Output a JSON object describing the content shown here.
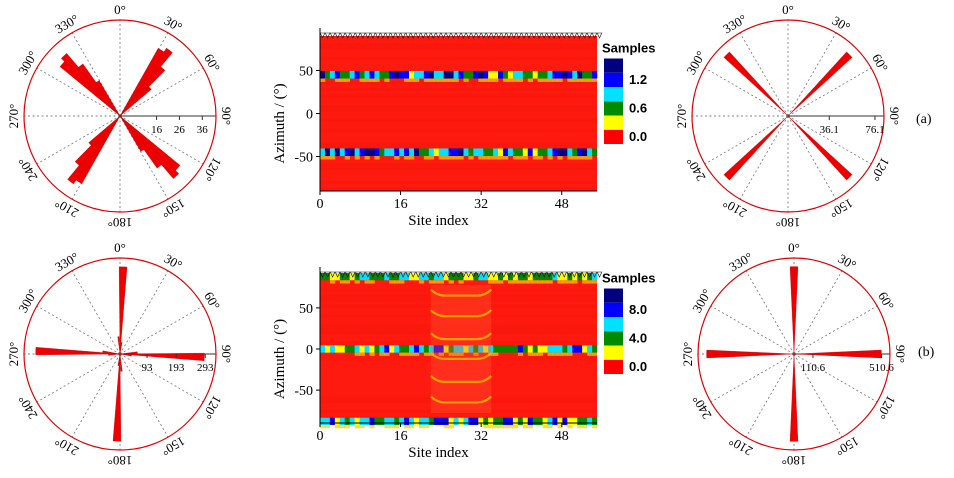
{
  "colors": {
    "rose_fill": "#ee0000",
    "circle": "#e00000",
    "spoke": "#808080",
    "map_red": "#ff1a10",
    "colorbar": [
      "#ff0000",
      "#ffff00",
      "#008a00",
      "#00e0ff",
      "#0000ff",
      "#000080"
    ]
  },
  "chart_data": [
    {
      "id": "rose-a-left",
      "type": "rose",
      "row": "a",
      "angle_labels": [
        "0°",
        "30°",
        "60°",
        "90°",
        "120°",
        "150°",
        "180°",
        "210°",
        "240°",
        "270°",
        "300°",
        "330°"
      ],
      "radial_ticks": [
        16,
        26,
        36
      ],
      "radial_tick_labels": [
        "16",
        "26",
        "36"
      ],
      "rmax": 42,
      "bins": [
        {
          "angle": 32,
          "value": 34
        },
        {
          "angle": 37,
          "value": 36
        },
        {
          "angle": 42,
          "value": 28
        },
        {
          "angle": 47,
          "value": 18
        },
        {
          "angle": 212,
          "value": 34
        },
        {
          "angle": 217,
          "value": 36
        },
        {
          "angle": 222,
          "value": 28
        },
        {
          "angle": 227,
          "value": 18
        },
        {
          "angle": 132,
          "value": 34
        },
        {
          "angle": 137,
          "value": 36
        },
        {
          "angle": 142,
          "value": 28
        },
        {
          "angle": 147,
          "value": 18
        },
        {
          "angle": 312,
          "value": 34
        },
        {
          "angle": 317,
          "value": 36
        },
        {
          "angle": 322,
          "value": 28
        },
        {
          "angle": 327,
          "value": 18
        }
      ]
    },
    {
      "id": "heatmap-a",
      "type": "heatmap",
      "row": "a",
      "xlabel": "Site index",
      "ylabel": "Azimuth / (°)",
      "xticks": [
        0,
        16,
        32,
        48
      ],
      "xlim": [
        0,
        55
      ],
      "yticks": [
        -50,
        0,
        50
      ],
      "ylim": [
        -90,
        90
      ],
      "colorbar_title": "Samples",
      "colorbar_ticks": [
        "1.2",
        "0.6",
        "0.0"
      ],
      "colorbar_max": 1.8,
      "bands": [
        {
          "azimuth": 45,
          "peak": 1.5
        },
        {
          "azimuth": -45,
          "peak": 1.5
        }
      ]
    },
    {
      "id": "rose-a-right",
      "type": "rose",
      "row": "a",
      "angle_labels": [
        "0°",
        "30°",
        "60°",
        "90°",
        "120°",
        "150°",
        "180°",
        "210°",
        "240°",
        "270°",
        "300°",
        "330°"
      ],
      "radial_ticks": [
        36.1,
        76.1
      ],
      "radial_tick_labels": [
        "36.1",
        "76.1"
      ],
      "rmax": 84,
      "bins": [
        {
          "angle": 45,
          "value": 76
        },
        {
          "angle": 135,
          "value": 76
        },
        {
          "angle": 225,
          "value": 76
        },
        {
          "angle": 315,
          "value": 76
        }
      ]
    },
    {
      "id": "rose-b-left",
      "type": "rose",
      "row": "b",
      "angle_labels": [
        "0°",
        "30°",
        "60°",
        "90°",
        "120°",
        "150°",
        "180°",
        "210°",
        "240°",
        "270°",
        "300°",
        "330°"
      ],
      "radial_ticks": [
        93,
        193,
        293
      ],
      "radial_tick_labels": [
        "93",
        "193",
        "293"
      ],
      "rmax": 330,
      "bins": [
        {
          "angle": 2,
          "value": 300
        },
        {
          "angle": 8,
          "value": 40
        },
        {
          "angle": 355,
          "value": 60
        },
        {
          "angle": 182,
          "value": 300
        },
        {
          "angle": 188,
          "value": 40
        },
        {
          "angle": 175,
          "value": 60
        },
        {
          "angle": 92,
          "value": 290
        },
        {
          "angle": 98,
          "value": 40
        },
        {
          "angle": 85,
          "value": 60
        },
        {
          "angle": 272,
          "value": 290
        },
        {
          "angle": 278,
          "value": 60
        },
        {
          "angle": 265,
          "value": 40
        }
      ]
    },
    {
      "id": "heatmap-b",
      "type": "heatmap",
      "row": "b",
      "xlabel": "Site index",
      "ylabel": "Azimuth / (°)",
      "xticks": [
        0,
        16,
        32,
        48
      ],
      "xlim": [
        0,
        55
      ],
      "yticks": [
        -50,
        0,
        50
      ],
      "ylim": [
        -90,
        90
      ],
      "colorbar_title": "Samples",
      "colorbar_ticks": [
        "8.0",
        "4.0",
        "0.0"
      ],
      "colorbar_max": 12,
      "bands": [
        {
          "azimuth": 88,
          "peak": 7
        },
        {
          "azimuth": 0,
          "peak": 8
        },
        {
          "azimuth": -88,
          "peak": 8
        }
      ],
      "loop": {
        "from": 22,
        "to": 34,
        "azimuths": [
          65,
          40,
          12,
          -12,
          -40,
          -65
        ]
      }
    },
    {
      "id": "rose-b-right",
      "type": "rose",
      "row": "b",
      "angle_labels": [
        "0°",
        "30°",
        "60°",
        "90°",
        "120°",
        "150°",
        "180°",
        "210°",
        "240°",
        "270°",
        "300°",
        "330°"
      ],
      "radial_ticks": [
        110.6,
        510.6
      ],
      "radial_tick_labels": [
        "110.6",
        "510.6"
      ],
      "rmax": 560,
      "bins": [
        {
          "angle": 0,
          "value": 510
        },
        {
          "angle": 90,
          "value": 510
        },
        {
          "angle": 180,
          "value": 510
        },
        {
          "angle": 270,
          "value": 510
        }
      ]
    }
  ],
  "panel_labels": {
    "a": "(a)",
    "b": "(b)"
  }
}
